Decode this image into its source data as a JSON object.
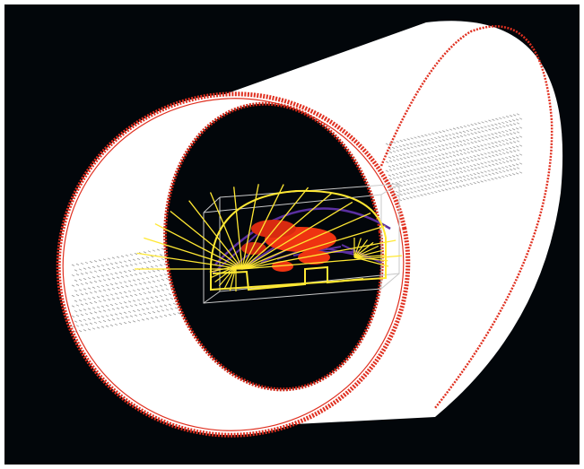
{
  "scene": {
    "subject": "detector-3d-render",
    "colors": {
      "background": "#02060a",
      "ring_fill": "#ffffff",
      "ring_edge": "#e03020",
      "hatch": "#9a9a9a",
      "wire": "#ffe833",
      "core": "#ee3311",
      "purple": "#5a2fa0",
      "box": "#c8c8c8"
    }
  }
}
